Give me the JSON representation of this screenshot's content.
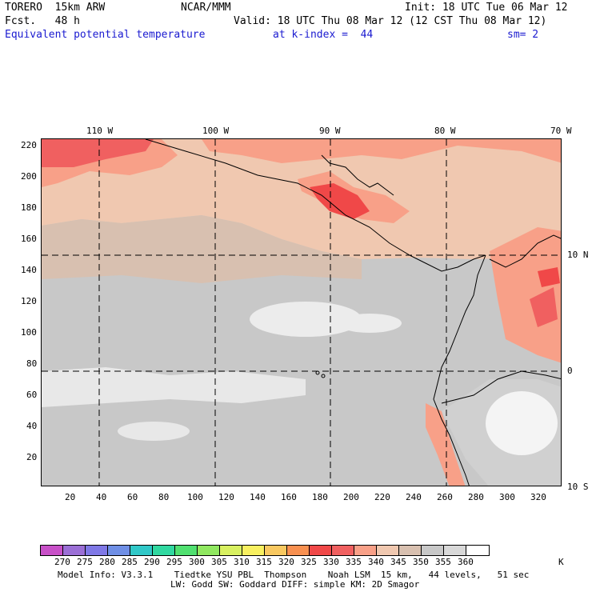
{
  "header": {
    "model": "TORERO  15km ARW",
    "center": "NCAR/MMM",
    "init": "Init: 18 UTC Tue 06 Mar 12",
    "fcst": "Fcst.   48 h",
    "valid": "Valid: 18 UTC Thu 08 Mar 12 (12 CST Thu 08 Mar 12)",
    "field": "Equivalent potential temperature",
    "level": "at k-index =  44",
    "smooth": "sm= 2"
  },
  "map": {
    "top_lon_labels": [
      "110 W",
      "100 W",
      "90 W",
      "80 W",
      "70 W"
    ],
    "right_lat_labels": [
      "10 N",
      "0",
      "10 S"
    ],
    "left_grid_labels": [
      "220",
      "200",
      "180",
      "160",
      "140",
      "120",
      "100",
      "80",
      "60",
      "40",
      "20"
    ],
    "bottom_grid_labels": [
      "20",
      "40",
      "60",
      "80",
      "100",
      "120",
      "140",
      "160",
      "180",
      "200",
      "220",
      "240",
      "260",
      "280",
      "300",
      "320"
    ]
  },
  "colorbar": {
    "labels": [
      "270",
      "275",
      "280",
      "285",
      "290",
      "295",
      "300",
      "305",
      "310",
      "315",
      "320",
      "325",
      "330",
      "335",
      "340",
      "345",
      "350",
      "355",
      "360"
    ],
    "unit": "K",
    "colors": [
      "#c850c8",
      "#9b6fd6",
      "#7f78e6",
      "#6f8fe6",
      "#30c8c8",
      "#30d8a0",
      "#50e070",
      "#90e860",
      "#d8f060",
      "#f8f060",
      "#f8c860",
      "#f89050",
      "#f04848",
      "#f06060",
      "#f8a088",
      "#f0c8b0",
      "#d8c0b0",
      "#c8c8c8",
      "#d8d8d8",
      "#ffffff"
    ]
  },
  "footer": {
    "line1": "Model Info: V3.3.1    Tiedtke YSU PBL  Thompson    Noah LSM  15 km,   44 levels,   51 sec",
    "line2": "LW: Godd SW: Goddard DIFF: simple KM: 2D Smagor"
  }
}
